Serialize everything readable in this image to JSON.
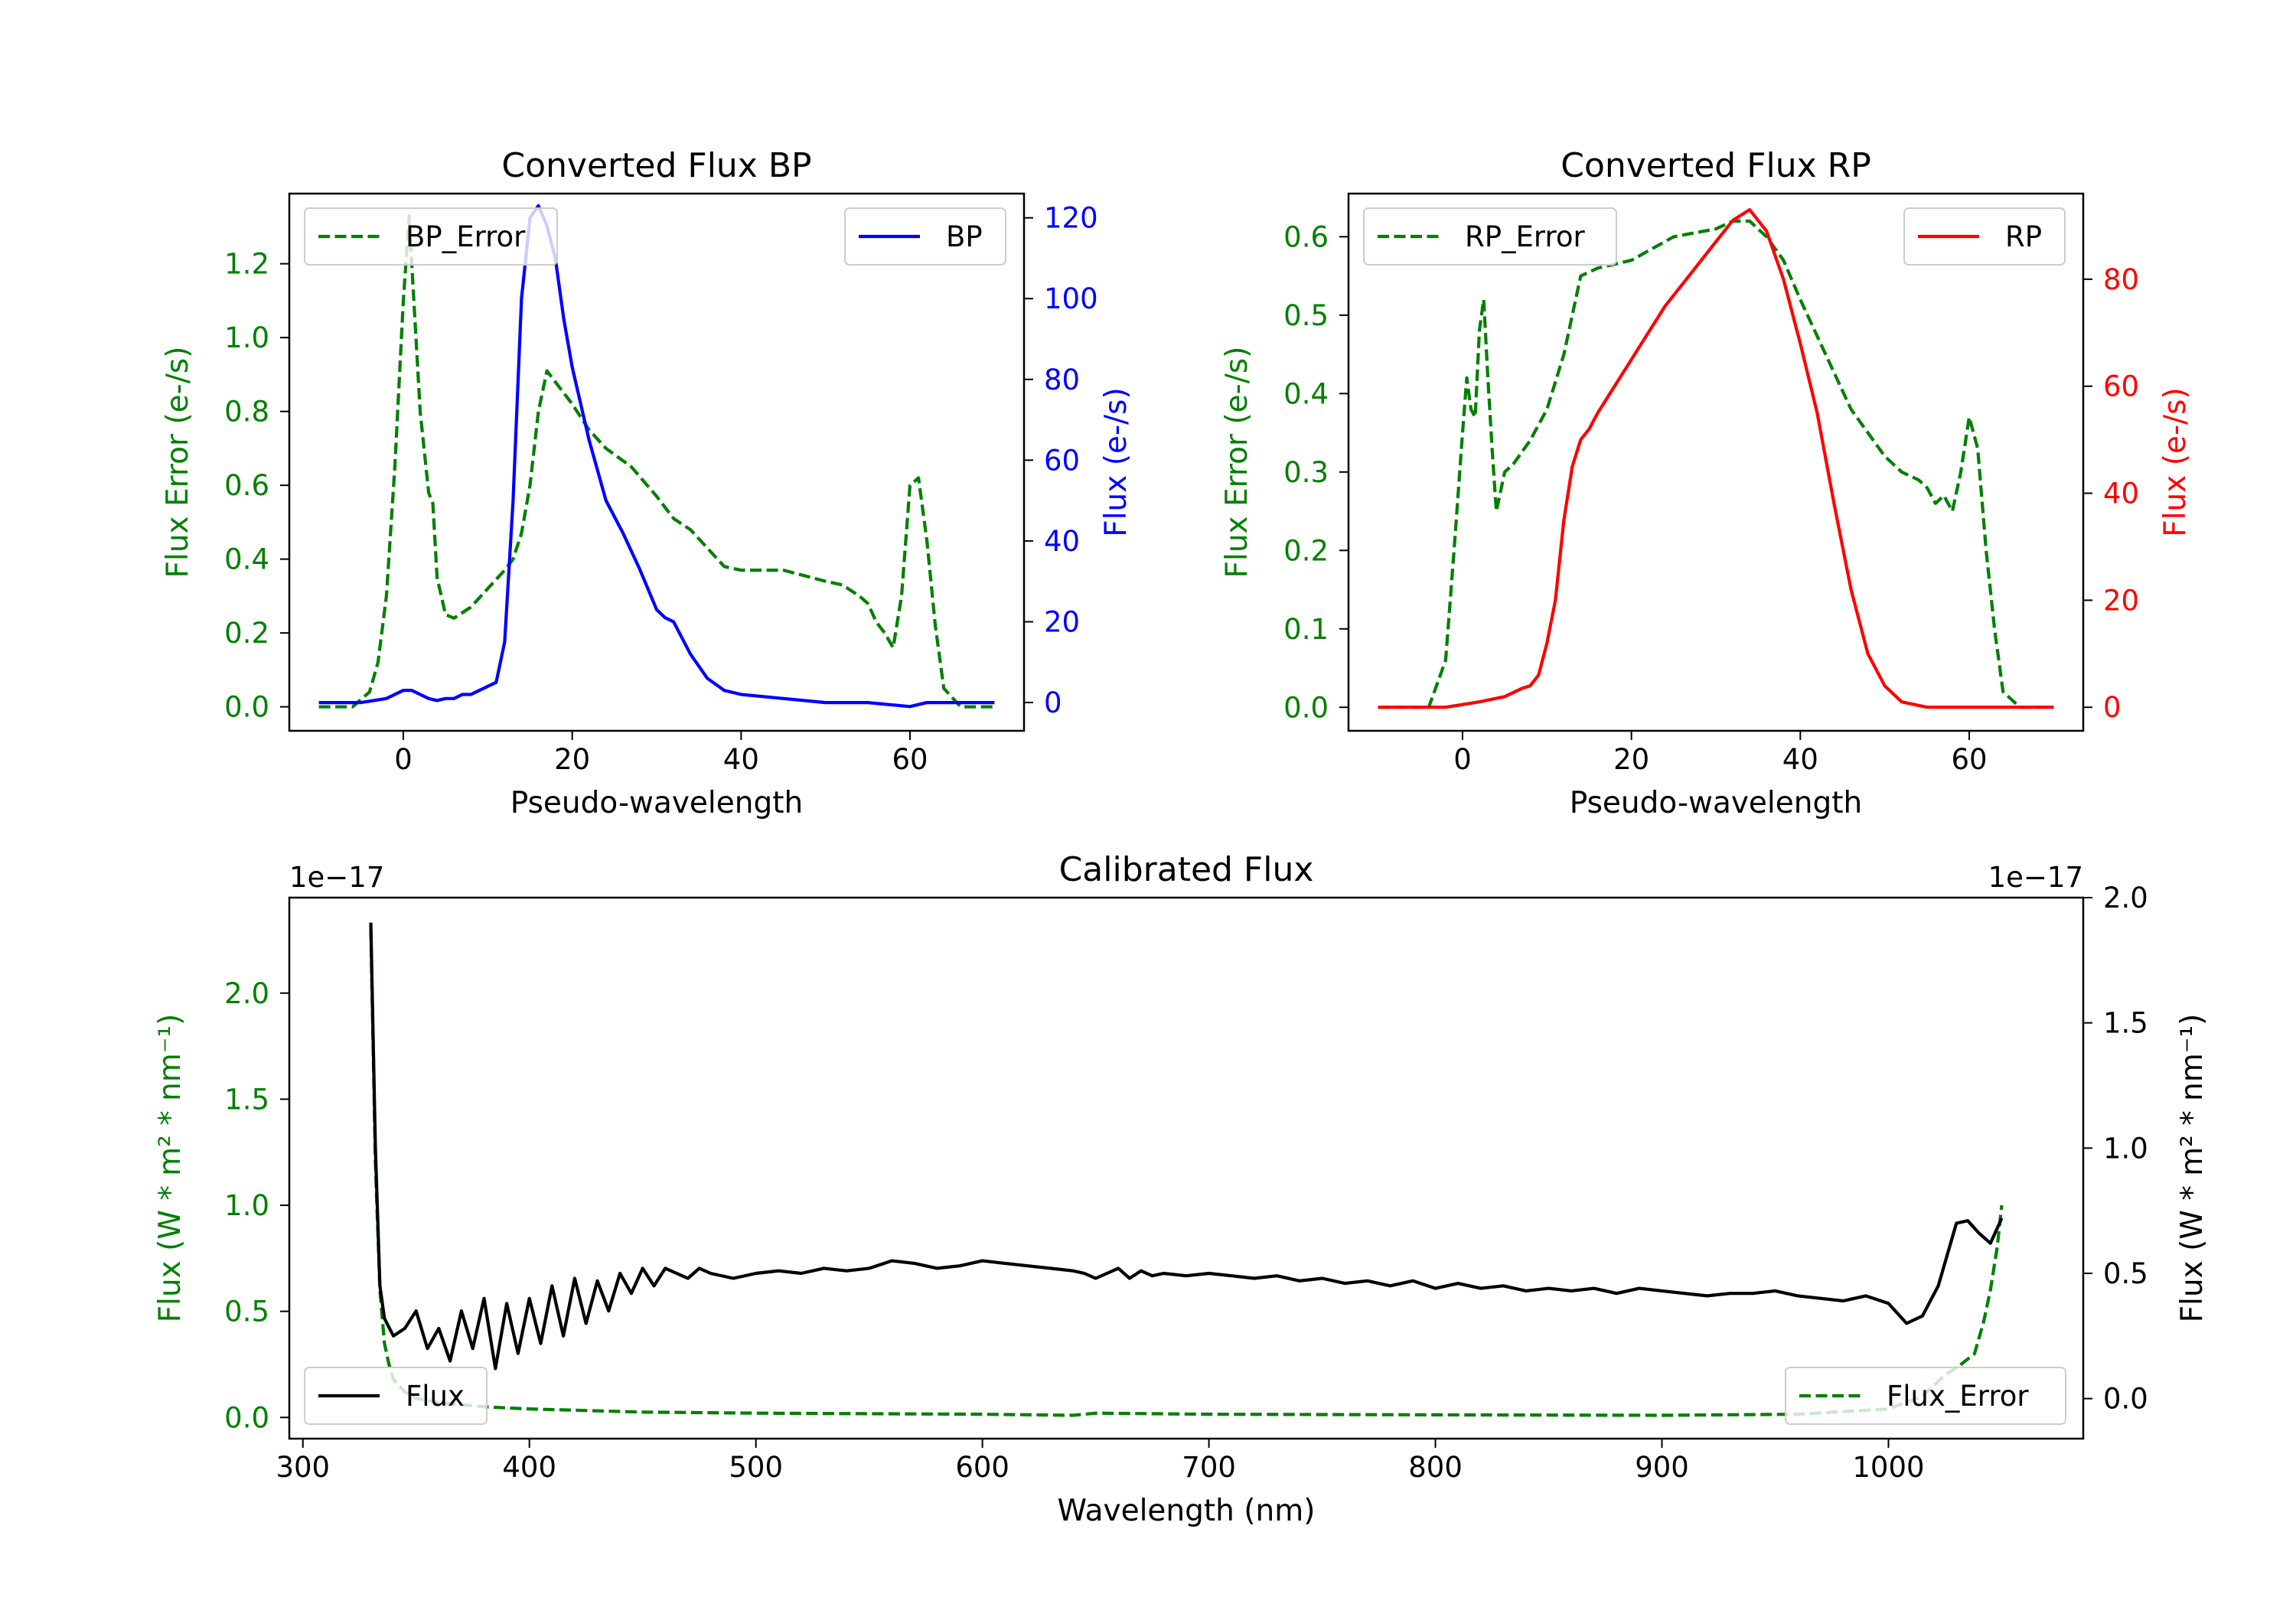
{
  "chart_data": [
    {
      "type": "line",
      "title": "Converted Flux BP",
      "xlabel": "Pseudo-wavelength",
      "ylabel_left": "Flux Error (e-/s)",
      "ylabel_right": "Flux (e-/s)",
      "xlim": [
        -13.5,
        73.5
      ],
      "ylim_left": [
        -0.065,
        1.39
      ],
      "ylim_right": [
        -7,
        126
      ],
      "xticks": [
        0,
        20,
        40,
        60
      ],
      "yticks_left": [
        0.0,
        0.2,
        0.4,
        0.6,
        0.8,
        1.0,
        1.2
      ],
      "yticks_right": [
        0,
        20,
        40,
        60,
        80,
        100,
        120
      ],
      "xtick_labels": [
        "0",
        "20",
        "40",
        "60"
      ],
      "ytick_labels_left": [
        "0.0",
        "0.2",
        "0.4",
        "0.6",
        "0.8",
        "1.0",
        "1.2"
      ],
      "ytick_labels_right": [
        "0",
        "20",
        "40",
        "60",
        "80",
        "100",
        "120"
      ],
      "legend_left": {
        "label": "BP_Error",
        "position": "upper-left"
      },
      "legend_right": {
        "label": "BP",
        "position": "upper-right"
      },
      "colors": {
        "error": "#008000",
        "flux": "#0000ff",
        "right_axis": "#0000ff",
        "left_axis": "#008000"
      },
      "series": [
        {
          "name": "BP_Error",
          "axis": "left",
          "style": "dashed",
          "x": [
            -10,
            -6,
            -4,
            -3,
            -2,
            -1,
            0,
            0.7,
            1,
            2,
            3,
            3.5,
            4,
            5,
            6,
            8,
            10,
            12,
            13,
            14,
            15,
            16,
            17,
            18,
            19,
            20,
            22,
            24,
            27,
            30,
            32,
            34,
            36,
            38,
            40,
            45,
            50,
            52,
            54,
            55,
            56,
            57,
            58,
            59,
            60,
            61,
            62,
            63,
            64,
            66,
            70
          ],
          "y": [
            0,
            0,
            0.04,
            0.12,
            0.3,
            0.65,
            1.1,
            1.33,
            1.2,
            0.8,
            0.58,
            0.55,
            0.35,
            0.25,
            0.24,
            0.27,
            0.32,
            0.37,
            0.4,
            0.47,
            0.6,
            0.8,
            0.91,
            0.88,
            0.85,
            0.82,
            0.75,
            0.7,
            0.65,
            0.57,
            0.51,
            0.48,
            0.43,
            0.38,
            0.37,
            0.37,
            0.34,
            0.33,
            0.3,
            0.28,
            0.23,
            0.2,
            0.16,
            0.3,
            0.6,
            0.62,
            0.45,
            0.22,
            0.05,
            0,
            0
          ]
        },
        {
          "name": "BP",
          "axis": "right",
          "style": "solid",
          "x": [
            -10,
            -5,
            -2,
            0,
            1,
            2,
            3,
            4,
            5,
            6,
            7,
            8,
            9,
            10,
            11,
            12,
            13,
            14,
            15,
            16,
            17,
            18,
            19,
            20,
            22,
            24,
            26,
            28,
            30,
            31,
            32,
            34,
            36,
            38,
            40,
            45,
            50,
            55,
            60,
            62,
            65,
            70
          ],
          "y": [
            0,
            0,
            1,
            3,
            3,
            2,
            1,
            0.5,
            1,
            1,
            2,
            2,
            3,
            4,
            5,
            15,
            50,
            100,
            120,
            123,
            118,
            110,
            95,
            83,
            65,
            50,
            42,
            33,
            23,
            21,
            20,
            12,
            6,
            3,
            2,
            1,
            0,
            0,
            -1,
            0,
            0,
            0
          ]
        }
      ]
    },
    {
      "type": "line",
      "title": "Converted Flux RP",
      "xlabel": "Pseudo-wavelength",
      "ylabel_left": "Flux Error (e-/s)",
      "ylabel_right": "Flux (e-/s)",
      "xlim": [
        -13.5,
        73.5
      ],
      "ylim_left": [
        -0.03,
        0.655
      ],
      "ylim_right": [
        -4.4,
        96
      ],
      "xticks": [
        0,
        20,
        40,
        60
      ],
      "yticks_left": [
        0.0,
        0.1,
        0.2,
        0.3,
        0.4,
        0.5,
        0.6
      ],
      "yticks_right": [
        0,
        20,
        40,
        60,
        80
      ],
      "xtick_labels": [
        "0",
        "20",
        "40",
        "60"
      ],
      "ytick_labels_left": [
        "0.0",
        "0.1",
        "0.2",
        "0.3",
        "0.4",
        "0.5",
        "0.6"
      ],
      "ytick_labels_right": [
        "0",
        "20",
        "40",
        "60",
        "80"
      ],
      "legend_left": {
        "label": "RP_Error",
        "position": "upper-left"
      },
      "legend_right": {
        "label": "RP",
        "position": "upper-right"
      },
      "colors": {
        "error": "#008000",
        "flux": "#ff0000",
        "right_axis": "#ff0000",
        "left_axis": "#008000"
      },
      "series": [
        {
          "name": "RP_Error",
          "axis": "left",
          "style": "dashed",
          "x": [
            -10,
            -4,
            -2,
            -1,
            0,
            0.5,
            1,
            1.5,
            2,
            2.5,
            3,
            3.5,
            4,
            5,
            6,
            8,
            10,
            12,
            13,
            14,
            16,
            20,
            25,
            30,
            32,
            34,
            36,
            38,
            40,
            43,
            46,
            50,
            52,
            54,
            55,
            56,
            57,
            58,
            59,
            60,
            61,
            62,
            63,
            64,
            66,
            70
          ],
          "y": [
            0,
            0,
            0.06,
            0.2,
            0.35,
            0.42,
            0.38,
            0.37,
            0.48,
            0.52,
            0.42,
            0.33,
            0.25,
            0.3,
            0.31,
            0.34,
            0.38,
            0.45,
            0.5,
            0.55,
            0.56,
            0.57,
            0.6,
            0.61,
            0.62,
            0.62,
            0.6,
            0.57,
            0.52,
            0.45,
            0.38,
            0.32,
            0.3,
            0.29,
            0.28,
            0.26,
            0.27,
            0.25,
            0.3,
            0.37,
            0.33,
            0.2,
            0.1,
            0.02,
            0,
            0
          ]
        },
        {
          "name": "RP",
          "axis": "right",
          "style": "solid",
          "x": [
            -10,
            -4,
            -2,
            0,
            2,
            5,
            7,
            8,
            9,
            10,
            11,
            12,
            13,
            14,
            15,
            16,
            18,
            20,
            22,
            24,
            26,
            28,
            30,
            32,
            34,
            36,
            38,
            40,
            42,
            44,
            46,
            48,
            50,
            52,
            55,
            60,
            65,
            70
          ],
          "y": [
            0,
            0,
            0,
            0.5,
            1,
            2,
            3.5,
            4,
            6,
            12,
            20,
            35,
            45,
            50,
            52,
            55,
            60,
            65,
            70,
            75,
            79,
            83,
            87,
            91,
            93,
            89,
            80,
            68,
            55,
            38,
            22,
            10,
            4,
            1,
            0,
            0,
            0,
            0
          ]
        }
      ]
    },
    {
      "type": "line",
      "title": "Calibrated Flux",
      "xlabel": "Wavelength (nm)",
      "ylabel_left": "Flux (W * m² * nm⁻¹)",
      "ylabel_right": "Flux (W * m² * nm⁻¹)",
      "offset_left": "1e−17",
      "offset_right": "1e−17",
      "xlim": [
        294,
        1086
      ],
      "ylim_left": [
        -0.1,
        2.45
      ],
      "ylim_right": [
        -0.16,
        2.0
      ],
      "xticks": [
        300,
        400,
        500,
        600,
        700,
        800,
        900,
        1000
      ],
      "yticks_left": [
        0.0,
        0.5,
        1.0,
        1.5,
        2.0
      ],
      "yticks_right": [
        0.0,
        0.5,
        1.0,
        1.5,
        2.0
      ],
      "xtick_labels": [
        "300",
        "400",
        "500",
        "600",
        "700",
        "800",
        "900",
        "1000"
      ],
      "ytick_labels_left": [
        "0.0",
        "0.5",
        "1.0",
        "1.5",
        "2.0"
      ],
      "ytick_labels_right": [
        "0.0",
        "0.5",
        "1.0",
        "1.5",
        "2.0"
      ],
      "legend_left": {
        "label": "Flux",
        "position": "lower-left"
      },
      "legend_right": {
        "label": "Flux_Error",
        "position": "lower-right"
      },
      "colors": {
        "error": "#008000",
        "flux": "#000000",
        "right_axis": "#000000",
        "left_axis": "#008000"
      },
      "series": [
        {
          "name": "Flux_Error",
          "axis": "left",
          "style": "dashed",
          "x": [
            330,
            332,
            334,
            336,
            338,
            340,
            345,
            350,
            360,
            380,
            400,
            450,
            500,
            600,
            640,
            650,
            700,
            800,
            900,
            960,
            1000,
            1015,
            1025,
            1032,
            1038,
            1042,
            1045,
            1048,
            1050
          ],
          "y": [
            2.3,
            1.2,
            0.6,
            0.35,
            0.25,
            0.18,
            0.12,
            0.09,
            0.07,
            0.05,
            0.04,
            0.025,
            0.02,
            0.015,
            0.01,
            0.02,
            0.015,
            0.012,
            0.01,
            0.015,
            0.04,
            0.1,
            0.2,
            0.25,
            0.3,
            0.45,
            0.6,
            0.8,
            1.0
          ]
        },
        {
          "name": "Flux",
          "axis": "right",
          "style": "solid",
          "x": [
            330,
            332,
            334,
            336,
            340,
            345,
            350,
            355,
            360,
            365,
            370,
            375,
            380,
            385,
            390,
            395,
            400,
            405,
            410,
            415,
            420,
            425,
            430,
            435,
            440,
            445,
            450,
            455,
            460,
            465,
            470,
            475,
            480,
            490,
            500,
            510,
            520,
            530,
            540,
            550,
            560,
            570,
            580,
            590,
            600,
            610,
            620,
            630,
            640,
            645,
            650,
            655,
            660,
            665,
            670,
            675,
            680,
            690,
            700,
            710,
            720,
            730,
            740,
            750,
            760,
            770,
            780,
            790,
            800,
            810,
            820,
            830,
            840,
            850,
            860,
            870,
            880,
            890,
            900,
            910,
            920,
            930,
            940,
            950,
            960,
            970,
            980,
            990,
            1000,
            1008,
            1015,
            1022,
            1030,
            1035,
            1040,
            1045,
            1050
          ],
          "y": [
            1.9,
            1.0,
            0.45,
            0.32,
            0.25,
            0.28,
            0.35,
            0.2,
            0.28,
            0.15,
            0.35,
            0.2,
            0.4,
            0.12,
            0.38,
            0.18,
            0.4,
            0.22,
            0.45,
            0.25,
            0.48,
            0.3,
            0.47,
            0.35,
            0.5,
            0.42,
            0.52,
            0.45,
            0.52,
            0.5,
            0.48,
            0.52,
            0.5,
            0.48,
            0.5,
            0.51,
            0.5,
            0.52,
            0.51,
            0.52,
            0.55,
            0.54,
            0.52,
            0.53,
            0.55,
            0.54,
            0.53,
            0.52,
            0.51,
            0.5,
            0.48,
            0.5,
            0.52,
            0.48,
            0.51,
            0.49,
            0.5,
            0.49,
            0.5,
            0.49,
            0.48,
            0.49,
            0.47,
            0.48,
            0.46,
            0.47,
            0.45,
            0.47,
            0.44,
            0.46,
            0.44,
            0.45,
            0.43,
            0.44,
            0.43,
            0.44,
            0.42,
            0.44,
            0.43,
            0.42,
            0.41,
            0.42,
            0.42,
            0.43,
            0.41,
            0.4,
            0.39,
            0.41,
            0.38,
            0.3,
            0.33,
            0.45,
            0.7,
            0.71,
            0.66,
            0.62,
            0.72
          ]
        }
      ]
    }
  ]
}
